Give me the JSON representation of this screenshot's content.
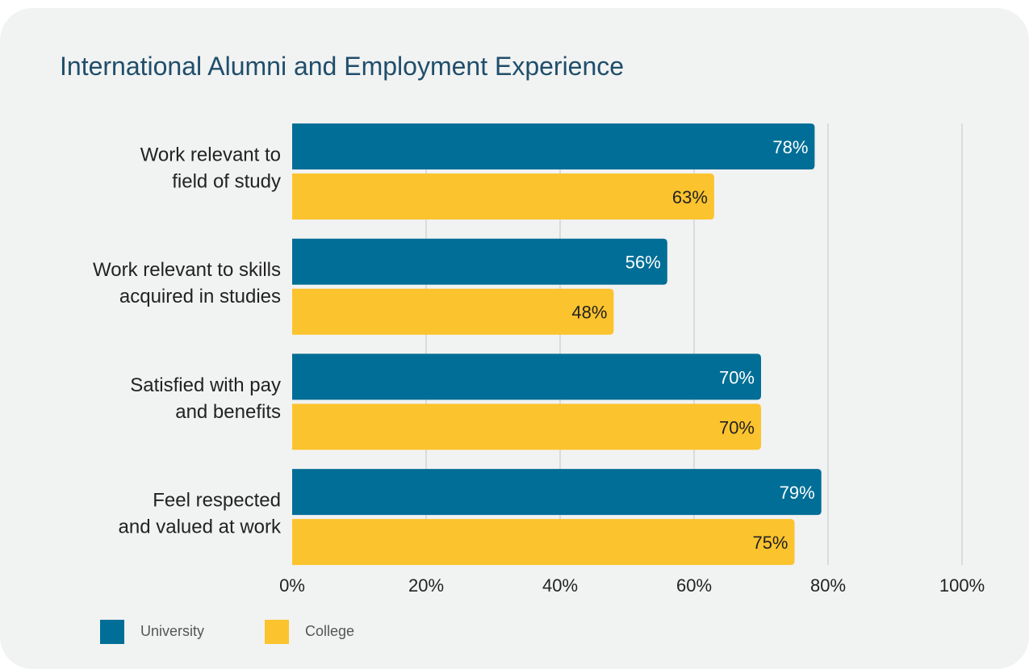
{
  "title": "International Alumni and Employment Experience",
  "colors": {
    "university": "#006e96",
    "college": "#fbc32d",
    "grid": "#c4c4c4",
    "card": "#f1f2f2"
  },
  "legend": [
    {
      "label": "University",
      "color": "#006e96"
    },
    {
      "label": "College",
      "color": "#fbc32d"
    }
  ],
  "chart_data": {
    "type": "bar",
    "orientation": "horizontal",
    "title": "International Alumni and Employment Experience",
    "categories": [
      [
        "Work relevant to",
        "field of study"
      ],
      [
        "Work relevant to skills",
        "acquired in studies"
      ],
      [
        "Satisfied with pay",
        "and benefits"
      ],
      [
        "Feel respected",
        "and valued at work"
      ]
    ],
    "series": [
      {
        "name": "University",
        "values": [
          78,
          56,
          70,
          79
        ],
        "labels": [
          "78%",
          "56%",
          "70%",
          "79%"
        ],
        "color": "#006e96",
        "label_color": "#ffffff"
      },
      {
        "name": "College",
        "values": [
          63,
          48,
          70,
          75
        ],
        "labels": [
          "63%",
          "48%",
          "70%",
          "75%"
        ],
        "color": "#fbc32d",
        "label_color": "#222222"
      }
    ],
    "xlim": [
      0,
      100
    ],
    "xticks": [
      "0%",
      "20%",
      "40%",
      "60%",
      "80%",
      "100%"
    ],
    "xtick_values": [
      0,
      20,
      40,
      60,
      80,
      100
    ],
    "grid": true,
    "legend_position": "bottom-left"
  }
}
